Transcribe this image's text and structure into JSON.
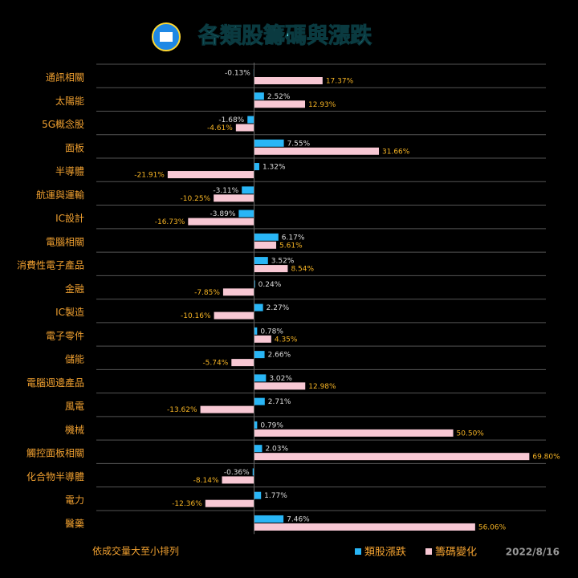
{
  "chart_data": {
    "type": "hbar",
    "title": "各類股籌碼與漲跌",
    "categories": [
      "通訊相關",
      "太陽能",
      "5G概念股",
      "面板",
      "半導體",
      "航運與運輸",
      "IC設計",
      "電腦相關",
      "消費性電子產品",
      "金融",
      "IC製造",
      "電子零件",
      "儲能",
      "電腦週邊產品",
      "風電",
      "機械",
      "觸控面板相關",
      "化合物半導體",
      "電力",
      "醫藥"
    ],
    "series": [
      {
        "name": "類股漲跌",
        "color": "#29b6f6",
        "values": [
          -0.13,
          2.52,
          -1.68,
          7.55,
          1.32,
          -3.11,
          -3.89,
          6.17,
          3.52,
          0.24,
          2.27,
          0.78,
          2.66,
          3.02,
          2.71,
          0.79,
          2.03,
          -0.36,
          1.77,
          7.46
        ],
        "value_labels": [
          "-0.13%",
          "2.52%",
          "-1.68%",
          "7.55%",
          "1.32%",
          "-3.11%",
          "-3.89%",
          "6.17%",
          "3.52%",
          "0.24%",
          "2.27%",
          "0.78%",
          "2.66%",
          "3.02%",
          "2.71%",
          "0.79%",
          "2.03%",
          "-0.36%",
          "1.77%",
          "7.46%"
        ]
      },
      {
        "name": "籌碼變化",
        "color": "#f8c8d4",
        "values": [
          17.37,
          12.93,
          -4.61,
          31.66,
          -21.91,
          -10.25,
          -16.73,
          5.61,
          8.54,
          -7.85,
          -10.16,
          4.35,
          -5.74,
          12.98,
          -13.62,
          50.5,
          69.8,
          -8.14,
          -12.36,
          56.06
        ],
        "value_labels": [
          "17.37%",
          "12.93%",
          "-4.61%",
          "31.66%",
          "-21.91%",
          "-10.25%",
          "-16.73%",
          "5.61%",
          "8.54%",
          "-7.85%",
          "-10.16%",
          "4.35%",
          "-5.74%",
          "12.98%",
          "-13.62%",
          "50.50%",
          "69.80%",
          "-8.14%",
          "-12.36%",
          "56.06%"
        ]
      }
    ],
    "xlim": [
      -40,
      74
    ],
    "note": "依成交量大至小排列",
    "date": "2022/8/16"
  }
}
